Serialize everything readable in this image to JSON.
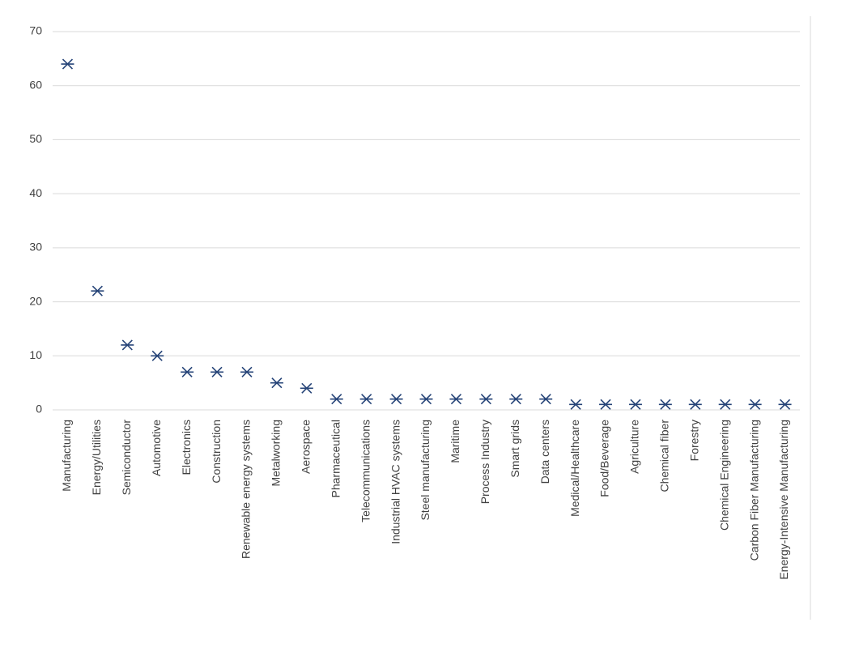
{
  "chart_data": {
    "type": "scatter",
    "categories": [
      "Manufacturing",
      "Energy/Utilities",
      "Semiconductor",
      "Automotive",
      "Electronics",
      "Construction",
      "Renewable energy systems",
      "Metalworking",
      "Aerospace",
      "Pharmaceutical",
      "Telecommunications",
      "Industrial HVAC systems",
      "Steel manufacturing",
      "Maritime",
      "Process Industry",
      "Smart grids",
      "Data centers",
      "Medical/Healthcare",
      "Food/Beverage",
      "Agriculture",
      "Chemical fiber",
      "Forestry",
      "Chemical Engineering",
      "Carbon Fiber Manufacturing",
      "Energy-Intensive Manufacturing"
    ],
    "values": [
      64,
      22,
      12,
      10,
      7,
      7,
      7,
      5,
      4,
      2,
      2,
      2,
      2,
      2,
      2,
      2,
      2,
      1,
      1,
      1,
      1,
      1,
      1,
      1,
      1
    ],
    "color": "#264478",
    "ylim": [
      0,
      70
    ],
    "yticks": [
      0,
      10,
      20,
      30,
      40,
      50,
      60,
      70
    ],
    "grid": true
  }
}
